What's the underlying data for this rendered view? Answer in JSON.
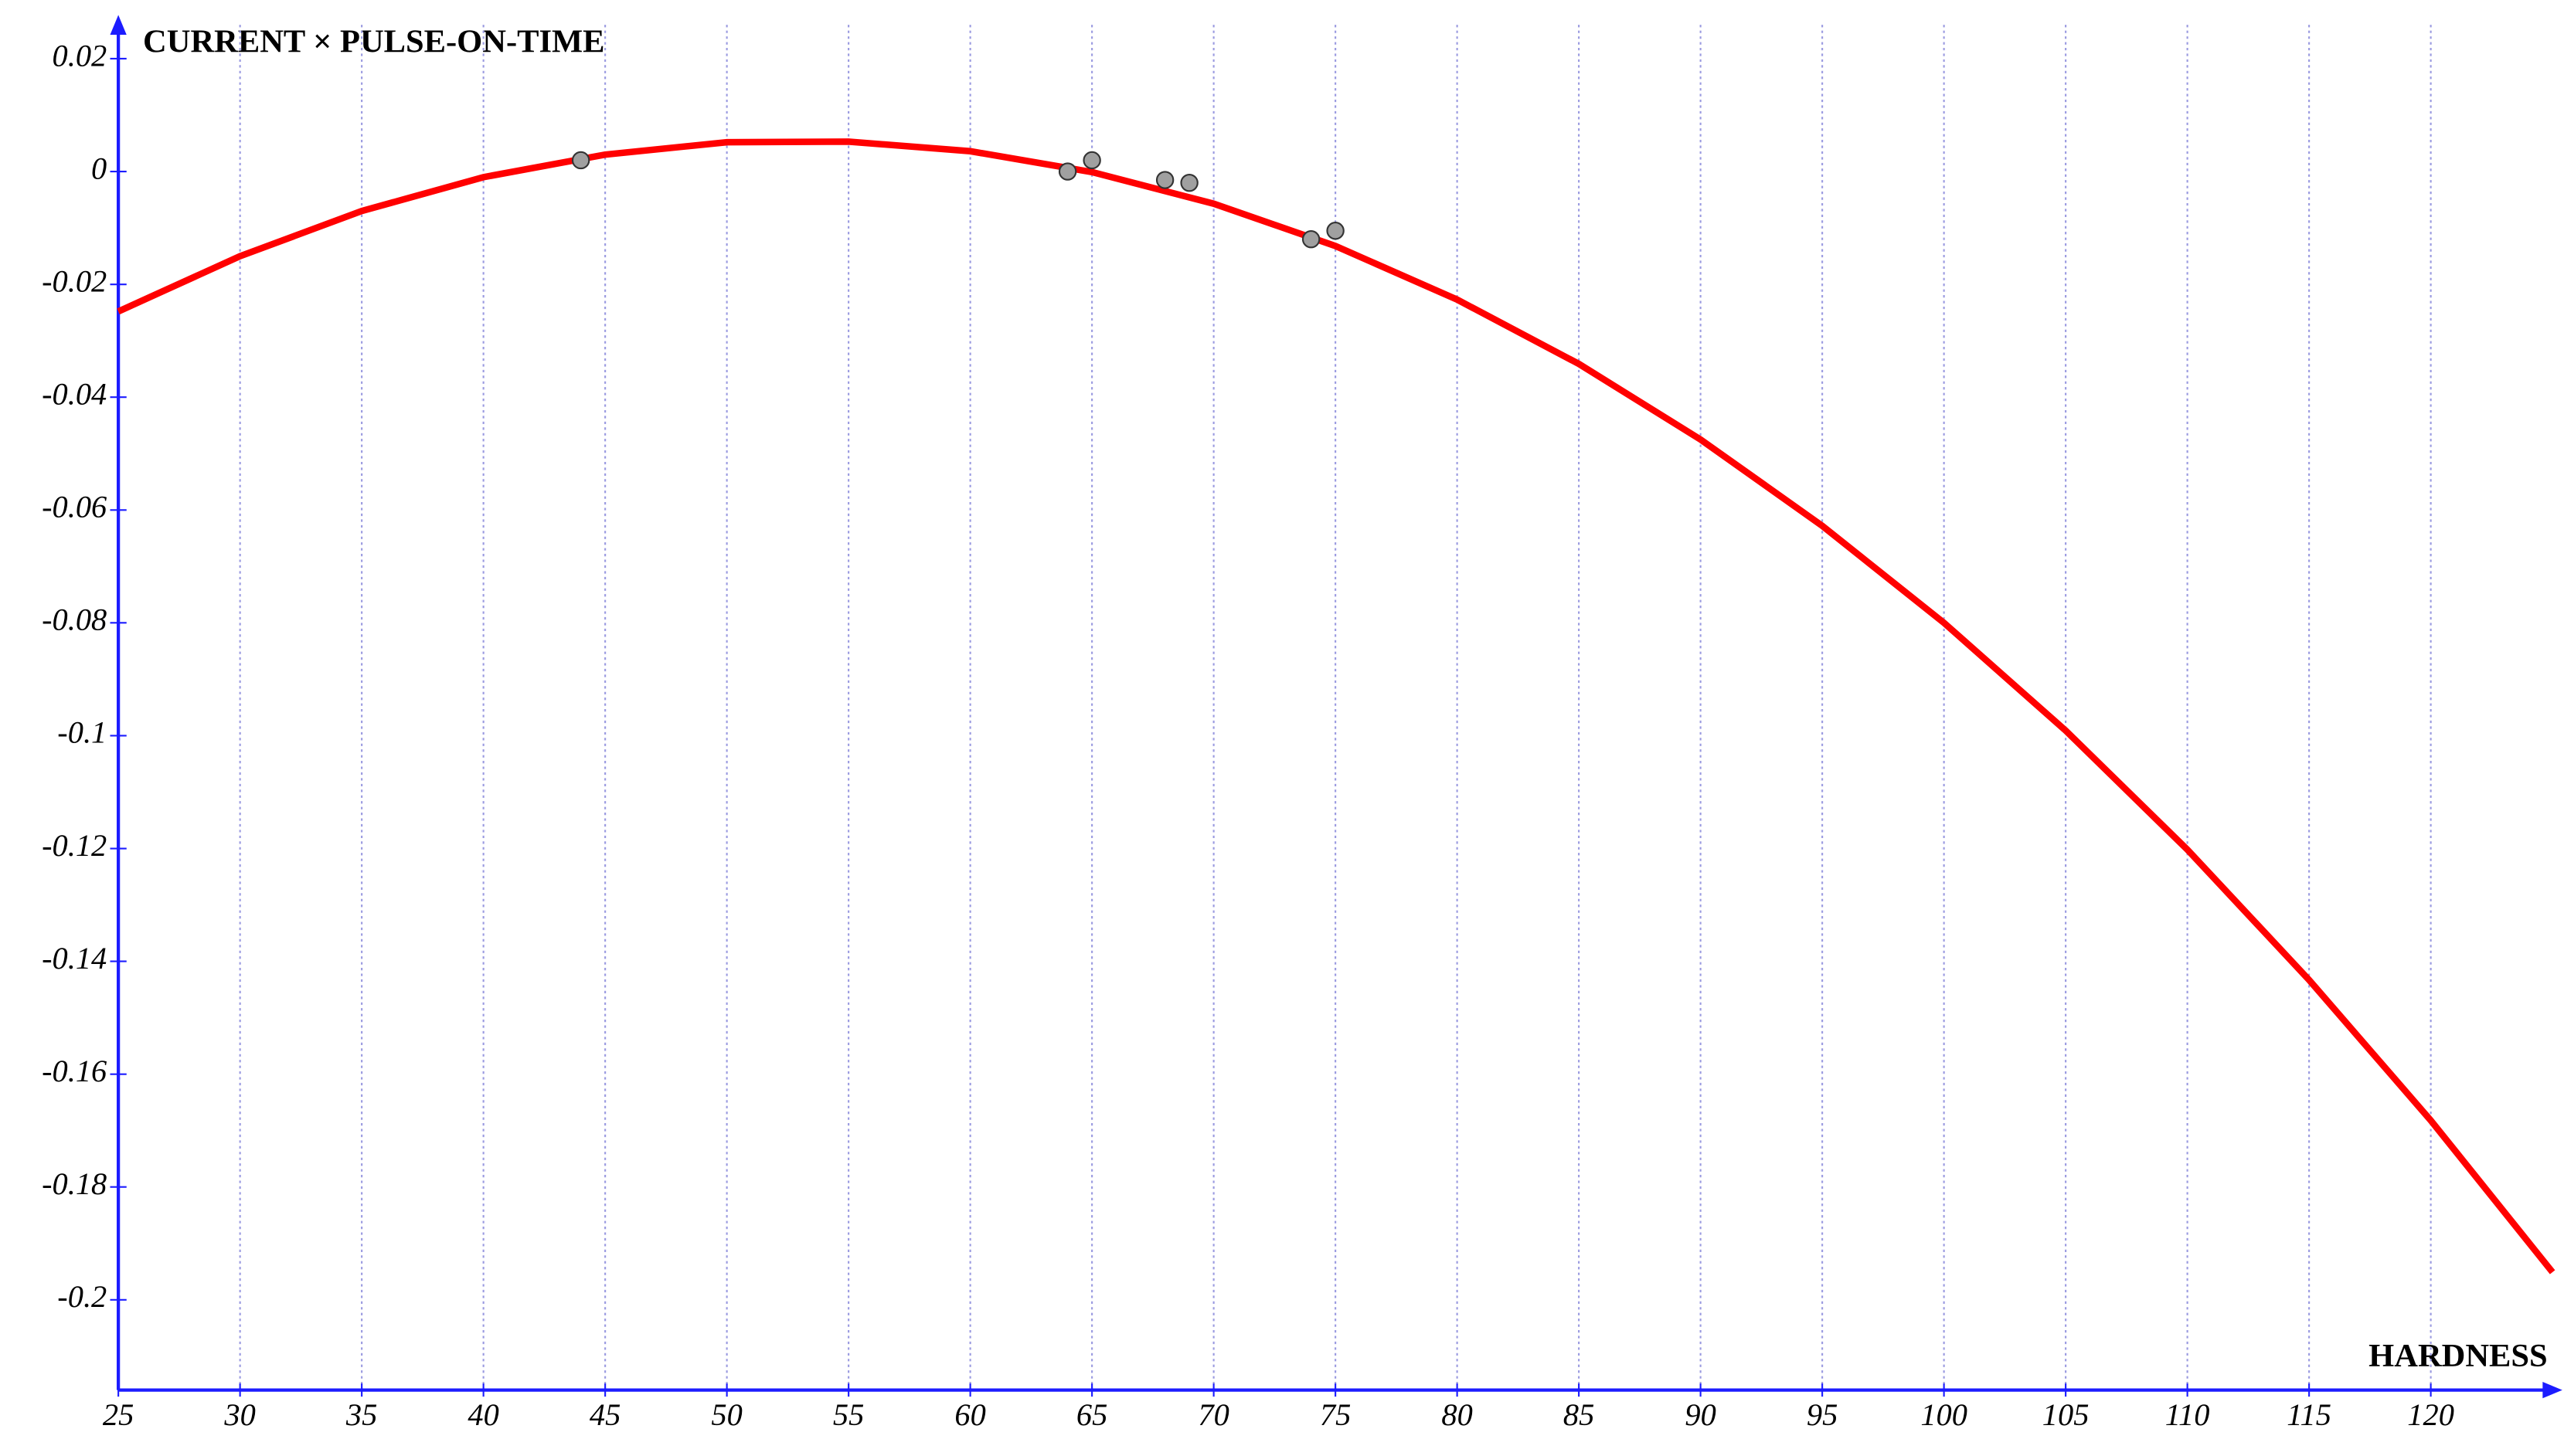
{
  "chart_data": {
    "type": "scatter",
    "x_label": "HARDNESS",
    "y_label": "CURRENT × PULSE-ON-TIME",
    "xlim": [
      25,
      125
    ],
    "ylim": [
      -0.216,
      0.026
    ],
    "xticks": [
      25,
      30,
      35,
      40,
      45,
      50,
      55,
      60,
      65,
      70,
      75,
      80,
      85,
      90,
      95,
      100,
      105,
      110,
      115,
      120
    ],
    "yticks": [
      0.02,
      0,
      -0.02,
      -0.04,
      -0.06,
      -0.08,
      -0.1,
      -0.12,
      -0.14,
      -0.16,
      -0.18,
      -0.2
    ],
    "grid": true,
    "axis_color": "#1c1cff",
    "grid_color": "#9a9ae0",
    "points": {
      "color": "#a0a0a0",
      "x": [
        44,
        64,
        65,
        68,
        69,
        74,
        75
      ],
      "y": [
        0.002,
        0.0,
        0.002,
        -0.0015,
        -0.002,
        -0.012,
        -0.0105
      ]
    },
    "curve": {
      "color": "#ff0000",
      "x": [
        25,
        30,
        35,
        40,
        45,
        50,
        55,
        60,
        65,
        70,
        75,
        80,
        85,
        90,
        95,
        100,
        105,
        110,
        115,
        120,
        125
      ],
      "y": [
        -0.0248,
        -0.015,
        -0.007,
        -0.001,
        0.003,
        0.0052,
        0.0053,
        0.0036,
        -0.0001,
        -0.0057,
        -0.0132,
        -0.0227,
        -0.0341,
        -0.0475,
        -0.0628,
        -0.08,
        -0.0991,
        -0.1202,
        -0.1433,
        -0.1682,
        -0.1951
      ]
    }
  }
}
